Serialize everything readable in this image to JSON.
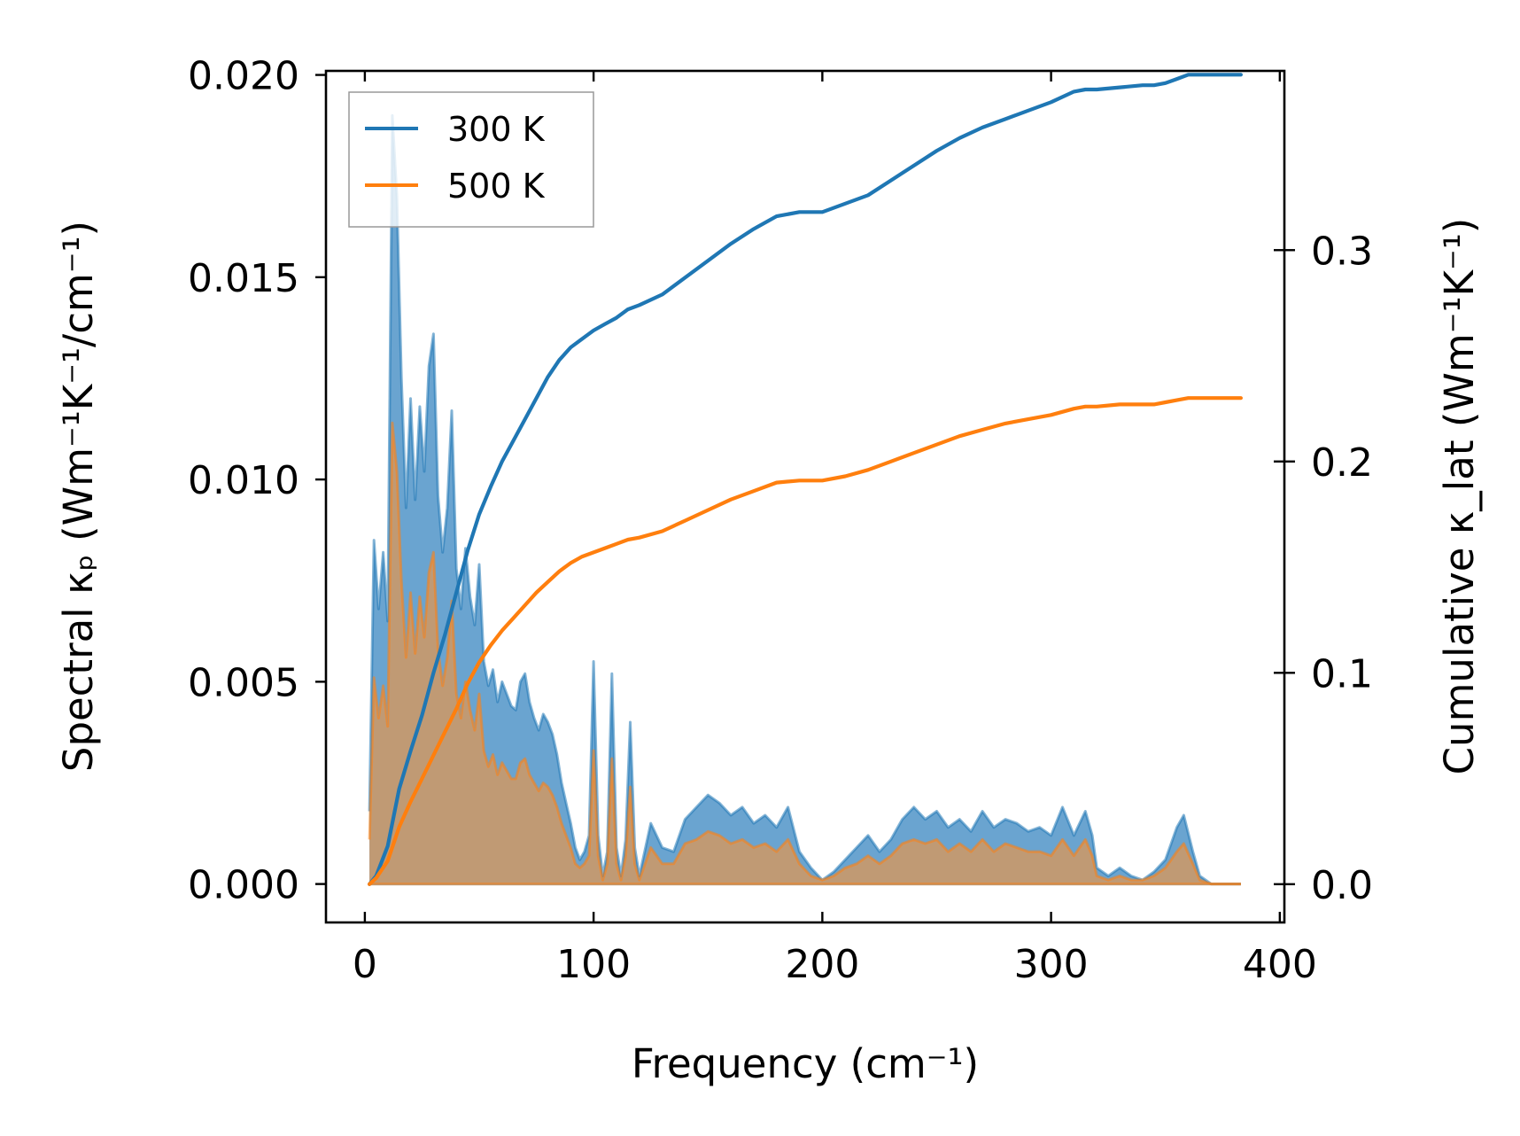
{
  "chart_data": {
    "type": "line",
    "xlabel": "Frequency (cm⁻¹)",
    "ylabel_left": "Spectral κₚ (Wm⁻¹K⁻¹/cm⁻¹)",
    "ylabel_right": "Cumulative κ_lat (Wm⁻¹K⁻¹)",
    "xlim": [
      -17,
      402
    ],
    "ylim_left": [
      -0.00095,
      0.0201
    ],
    "ylim_right": [
      -0.0181,
      0.3848
    ],
    "x_ticks": [
      0,
      100,
      200,
      300,
      400
    ],
    "x_tick_labels": [
      "0",
      "100",
      "200",
      "300",
      "400"
    ],
    "y_left_ticks": [
      0.0,
      0.005,
      0.01,
      0.015,
      0.02
    ],
    "y_left_tick_labels": [
      "0.000",
      "0.005",
      "0.010",
      "0.015",
      "0.020"
    ],
    "y_right_ticks": [
      0.0,
      0.1,
      0.2,
      0.3
    ],
    "y_right_tick_labels": [
      "0.0",
      "0.1",
      "0.2",
      "0.3"
    ],
    "legend": {
      "location": "upper-left",
      "entries": [
        "300 K",
        "500 K"
      ]
    },
    "colors": {
      "300 K": "#1f77b4",
      "500 K": "#ff7f0e",
      "fill_300": "#5d9ccc",
      "fill_500": "#c8996b"
    },
    "spectral": {
      "300 K": {
        "x": [
          2,
          4,
          6,
          8,
          10,
          12,
          14,
          16,
          18,
          20,
          22,
          24,
          26,
          28,
          30,
          32,
          34,
          36,
          38,
          40,
          42,
          44,
          46,
          48,
          50,
          52,
          54,
          56,
          58,
          60,
          62,
          64,
          66,
          68,
          70,
          72,
          74,
          76,
          78,
          80,
          82,
          84,
          86,
          88,
          90,
          92,
          94,
          96,
          98,
          100,
          102,
          104,
          106,
          108,
          110,
          112,
          114,
          116,
          118,
          120,
          125,
          130,
          135,
          140,
          145,
          150,
          155,
          160,
          165,
          170,
          175,
          180,
          185,
          190,
          195,
          200,
          205,
          210,
          215,
          220,
          225,
          230,
          235,
          240,
          245,
          250,
          255,
          260,
          265,
          270,
          275,
          280,
          285,
          290,
          295,
          300,
          305,
          310,
          315,
          318,
          320,
          325,
          330,
          335,
          340,
          345,
          350,
          355,
          358,
          362,
          365,
          370,
          375,
          383
        ],
        "y": [
          0.0018,
          0.0085,
          0.0068,
          0.0082,
          0.0065,
          0.019,
          0.017,
          0.0125,
          0.0093,
          0.012,
          0.0095,
          0.0118,
          0.0102,
          0.0128,
          0.0136,
          0.0096,
          0.0082,
          0.0093,
          0.0117,
          0.0078,
          0.0068,
          0.0083,
          0.0071,
          0.0064,
          0.0079,
          0.0055,
          0.0049,
          0.0053,
          0.0045,
          0.005,
          0.0047,
          0.0044,
          0.0043,
          0.005,
          0.0052,
          0.0045,
          0.0041,
          0.0038,
          0.0042,
          0.004,
          0.0037,
          0.0032,
          0.0025,
          0.002,
          0.0015,
          0.0009,
          0.0006,
          0.0008,
          0.0012,
          0.0055,
          0.0012,
          0.0002,
          0.0008,
          0.0052,
          0.0009,
          0.0002,
          0.0011,
          0.004,
          0.0009,
          0.0002,
          0.0015,
          0.0009,
          0.0008,
          0.0016,
          0.0019,
          0.0022,
          0.002,
          0.0017,
          0.0019,
          0.0015,
          0.0017,
          0.0014,
          0.0019,
          0.0008,
          0.0004,
          0.0001,
          0.0003,
          0.0006,
          0.0009,
          0.0012,
          0.0008,
          0.0011,
          0.0016,
          0.0019,
          0.0016,
          0.0018,
          0.0014,
          0.0016,
          0.0013,
          0.0018,
          0.0014,
          0.0016,
          0.0015,
          0.0013,
          0.0014,
          0.0012,
          0.0019,
          0.0012,
          0.0018,
          0.0012,
          0.0004,
          0.0002,
          0.0004,
          0.0002,
          0.0001,
          0.0003,
          0.0006,
          0.0014,
          0.0017,
          0.0008,
          0.0002,
          0.0,
          0.0,
          0.0
        ]
      },
      "500 K": {
        "x": [
          2,
          4,
          6,
          8,
          10,
          12,
          14,
          16,
          18,
          20,
          22,
          24,
          26,
          28,
          30,
          32,
          34,
          36,
          38,
          40,
          42,
          44,
          46,
          48,
          50,
          52,
          54,
          56,
          58,
          60,
          62,
          64,
          66,
          68,
          70,
          72,
          74,
          76,
          78,
          80,
          82,
          84,
          86,
          88,
          90,
          92,
          94,
          96,
          98,
          100,
          102,
          104,
          106,
          108,
          110,
          112,
          114,
          116,
          118,
          120,
          125,
          130,
          135,
          140,
          145,
          150,
          155,
          160,
          165,
          170,
          175,
          180,
          185,
          190,
          195,
          200,
          205,
          210,
          215,
          220,
          225,
          230,
          235,
          240,
          245,
          250,
          255,
          260,
          265,
          270,
          275,
          280,
          285,
          290,
          295,
          300,
          305,
          310,
          315,
          318,
          320,
          325,
          330,
          335,
          340,
          345,
          350,
          355,
          358,
          362,
          365,
          370,
          375,
          383
        ],
        "y": [
          0.0011,
          0.0051,
          0.0041,
          0.0049,
          0.0039,
          0.0114,
          0.0102,
          0.0075,
          0.0056,
          0.0072,
          0.0057,
          0.0071,
          0.0061,
          0.0077,
          0.0082,
          0.0058,
          0.0049,
          0.0056,
          0.007,
          0.0047,
          0.0041,
          0.005,
          0.0043,
          0.0038,
          0.0047,
          0.0033,
          0.0029,
          0.0032,
          0.0027,
          0.003,
          0.0028,
          0.0026,
          0.0026,
          0.003,
          0.0031,
          0.0027,
          0.0025,
          0.0023,
          0.0025,
          0.0024,
          0.0022,
          0.0019,
          0.0015,
          0.0012,
          0.0009,
          0.0005,
          0.0004,
          0.0005,
          0.0007,
          0.0033,
          0.0007,
          0.0001,
          0.0005,
          0.0031,
          0.0005,
          0.0001,
          0.0007,
          0.0024,
          0.0005,
          0.0001,
          0.0009,
          0.0005,
          0.0005,
          0.001,
          0.0011,
          0.0013,
          0.0012,
          0.001,
          0.0011,
          0.0009,
          0.001,
          0.0008,
          0.0011,
          0.0005,
          0.0002,
          0.0001,
          0.0002,
          0.0004,
          0.0005,
          0.0007,
          0.0005,
          0.0007,
          0.001,
          0.0011,
          0.001,
          0.0011,
          0.0008,
          0.001,
          0.0008,
          0.0011,
          0.0008,
          0.001,
          0.0009,
          0.0008,
          0.0008,
          0.0007,
          0.0011,
          0.0007,
          0.0011,
          0.0007,
          0.0002,
          0.0001,
          0.0002,
          0.0001,
          0.0001,
          0.0002,
          0.0004,
          0.0008,
          0.001,
          0.0005,
          0.0001,
          0.0,
          0.0,
          0.0
        ]
      }
    },
    "cumulative": {
      "300 K": {
        "x": [
          2,
          5,
          10,
          15,
          20,
          25,
          30,
          35,
          40,
          45,
          50,
          55,
          60,
          65,
          70,
          75,
          80,
          85,
          90,
          95,
          100,
          105,
          110,
          115,
          120,
          130,
          140,
          150,
          160,
          170,
          180,
          190,
          200,
          210,
          220,
          230,
          240,
          250,
          260,
          270,
          280,
          290,
          300,
          310,
          315,
          320,
          330,
          340,
          345,
          350,
          355,
          360,
          365,
          383
        ],
        "y": [
          0.0,
          0.004,
          0.018,
          0.045,
          0.063,
          0.08,
          0.1,
          0.118,
          0.138,
          0.158,
          0.175,
          0.188,
          0.2,
          0.21,
          0.22,
          0.23,
          0.24,
          0.248,
          0.254,
          0.258,
          0.262,
          0.265,
          0.268,
          0.272,
          0.274,
          0.279,
          0.287,
          0.295,
          0.303,
          0.31,
          0.316,
          0.318,
          0.318,
          0.322,
          0.326,
          0.333,
          0.34,
          0.347,
          0.353,
          0.358,
          0.362,
          0.366,
          0.37,
          0.375,
          0.376,
          0.376,
          0.377,
          0.378,
          0.378,
          0.379,
          0.381,
          0.383,
          0.383,
          0.383
        ]
      },
      "500 K": {
        "x": [
          2,
          5,
          10,
          15,
          20,
          25,
          30,
          35,
          40,
          45,
          50,
          55,
          60,
          65,
          70,
          75,
          80,
          85,
          90,
          95,
          100,
          105,
          110,
          115,
          120,
          130,
          140,
          150,
          160,
          170,
          180,
          190,
          200,
          210,
          220,
          230,
          240,
          250,
          260,
          270,
          280,
          290,
          300,
          310,
          315,
          320,
          330,
          340,
          345,
          350,
          355,
          360,
          365,
          383
        ],
        "y": [
          0.0,
          0.003,
          0.011,
          0.027,
          0.039,
          0.05,
          0.061,
          0.072,
          0.083,
          0.095,
          0.105,
          0.113,
          0.12,
          0.126,
          0.132,
          0.138,
          0.143,
          0.148,
          0.152,
          0.155,
          0.157,
          0.159,
          0.161,
          0.163,
          0.164,
          0.167,
          0.172,
          0.177,
          0.182,
          0.186,
          0.19,
          0.191,
          0.191,
          0.193,
          0.196,
          0.2,
          0.204,
          0.208,
          0.212,
          0.215,
          0.218,
          0.22,
          0.222,
          0.225,
          0.226,
          0.226,
          0.227,
          0.227,
          0.227,
          0.228,
          0.229,
          0.23,
          0.23,
          0.23
        ]
      }
    }
  }
}
